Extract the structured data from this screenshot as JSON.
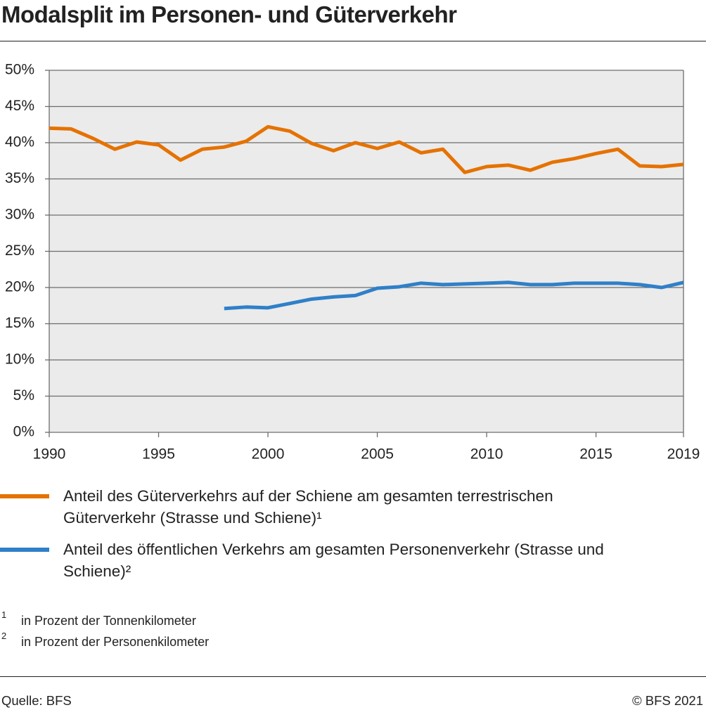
{
  "chart_data": {
    "type": "line",
    "title": "Modalsplit im Personen- und Güterverkehr",
    "x": [
      1990,
      1991,
      1992,
      1993,
      1994,
      1995,
      1996,
      1997,
      1998,
      1999,
      2000,
      2001,
      2002,
      2003,
      2004,
      2005,
      2006,
      2007,
      2008,
      2009,
      2010,
      2011,
      2012,
      2013,
      2014,
      2015,
      2016,
      2017,
      2018,
      2019
    ],
    "xlim": [
      1990,
      2019
    ],
    "xticks": [
      1990,
      1995,
      2000,
      2005,
      2010,
      2015,
      2019
    ],
    "ylim": [
      0,
      50
    ],
    "yticks": [
      {
        "value": 0,
        "label": "0%"
      },
      {
        "value": 5,
        "label": "5%"
      },
      {
        "value": 10,
        "label": "10%"
      },
      {
        "value": 15,
        "label": "15%"
      },
      {
        "value": 20,
        "label": "20%"
      },
      {
        "value": 25,
        "label": "25%"
      },
      {
        "value": 30,
        "label": "30%"
      },
      {
        "value": 35,
        "label": "35%"
      },
      {
        "value": 40,
        "label": "40%"
      },
      {
        "value": 45,
        "label": "45%"
      },
      {
        "value": 50,
        "label": "50%"
      }
    ],
    "grid": true,
    "series": [
      {
        "name": "Anteil des Güterverkehrs auf der Schiene am gesamten terrestrischen Güterverkehr (Strasse und Schiene)¹",
        "color": "#e57200",
        "values": [
          42.0,
          41.9,
          40.6,
          39.1,
          40.1,
          39.7,
          37.6,
          39.1,
          39.4,
          40.2,
          42.2,
          41.6,
          39.9,
          38.9,
          40.0,
          39.2,
          40.1,
          38.6,
          39.1,
          35.9,
          36.7,
          36.9,
          36.2,
          37.3,
          37.8,
          38.5,
          39.1,
          36.8,
          36.7,
          37.0
        ]
      },
      {
        "name": "Anteil des öffentlichen Verkehrs am gesamten Personenverkehr (Strasse und Schiene)²",
        "color": "#2f80c8",
        "values": [
          null,
          null,
          null,
          null,
          null,
          null,
          null,
          null,
          17.1,
          17.3,
          17.2,
          17.8,
          18.4,
          18.7,
          18.9,
          19.9,
          20.1,
          20.6,
          20.4,
          20.5,
          20.6,
          20.7,
          20.4,
          20.4,
          20.6,
          20.6,
          20.6,
          20.4,
          20.0,
          20.7
        ]
      }
    ]
  },
  "footnotes": [
    {
      "mark": "1",
      "text": "in Prozent der Tonnenkilometer"
    },
    {
      "mark": "2",
      "text": "in Prozent der Personenkilometer"
    }
  ],
  "source": "Quelle: BFS",
  "copyright": "© BFS 2021"
}
